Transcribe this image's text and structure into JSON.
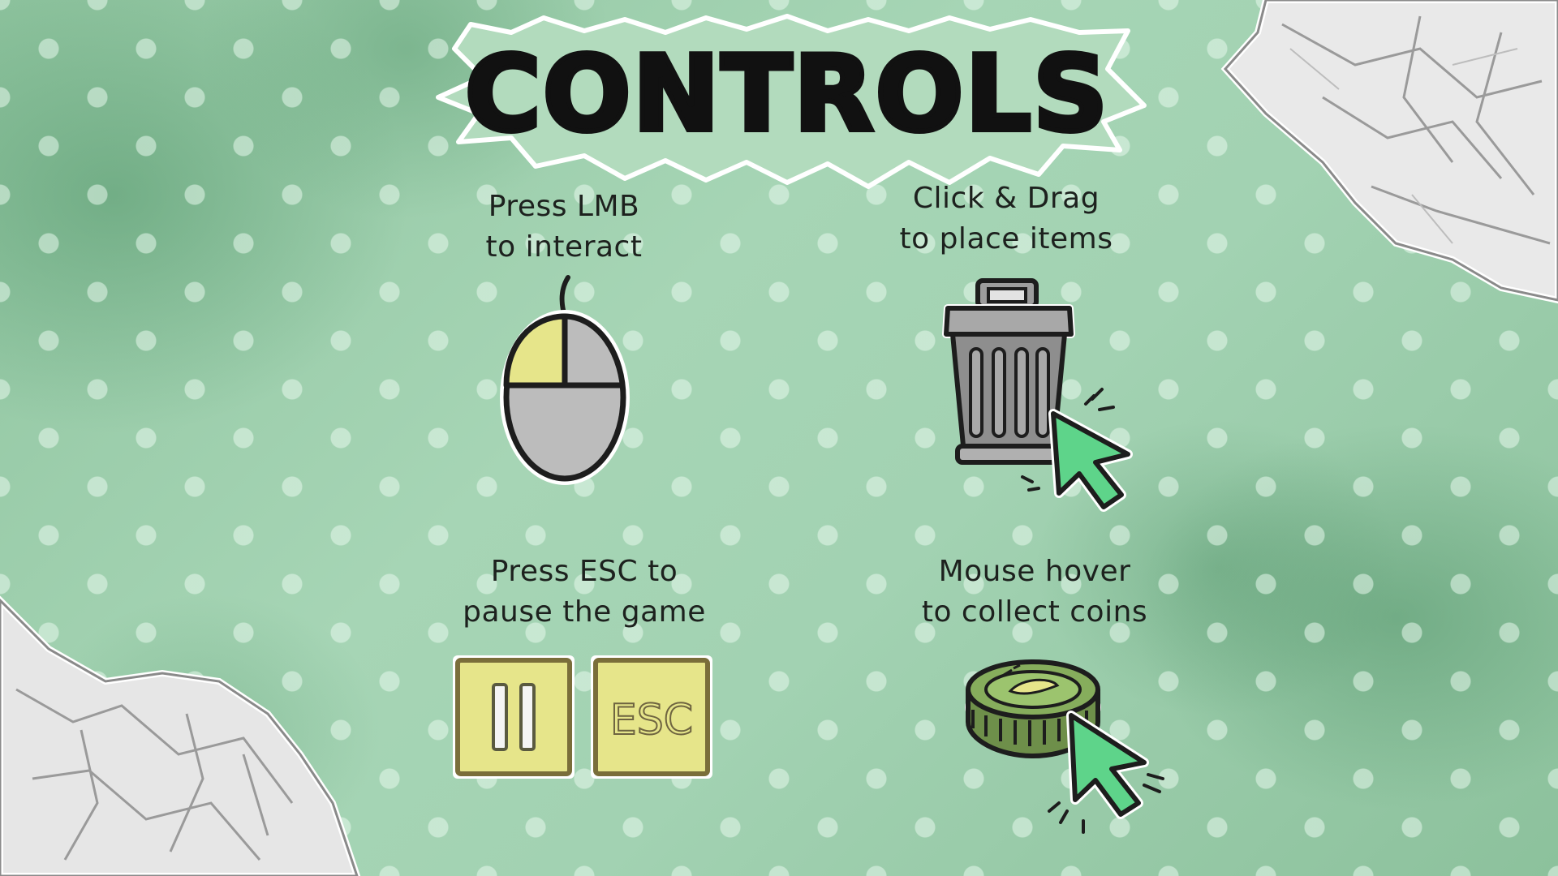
{
  "screen": {
    "title": "CONTROLS"
  },
  "controls": [
    {
      "line1": "Press LMB",
      "line2": "to interact",
      "icon": "mouse-left-button-icon"
    },
    {
      "line1": "Click & Drag",
      "line2": "to place items",
      "icon": "trash-can-drag-icon"
    },
    {
      "line1": "Press ESC to",
      "line2": "pause the game",
      "icon": "pause-key-icon"
    },
    {
      "line1": "Mouse hover",
      "line2": "to collect coins",
      "icon": "coin-hover-icon"
    }
  ],
  "keys": {
    "esc_label": "ESC"
  },
  "colors": {
    "background": "#9fcfae",
    "accent_yellow": "#e6e58a",
    "cursor_green": "#5ed48a",
    "coin_green": "#7fa35a",
    "gray": "#b9b9b9"
  }
}
